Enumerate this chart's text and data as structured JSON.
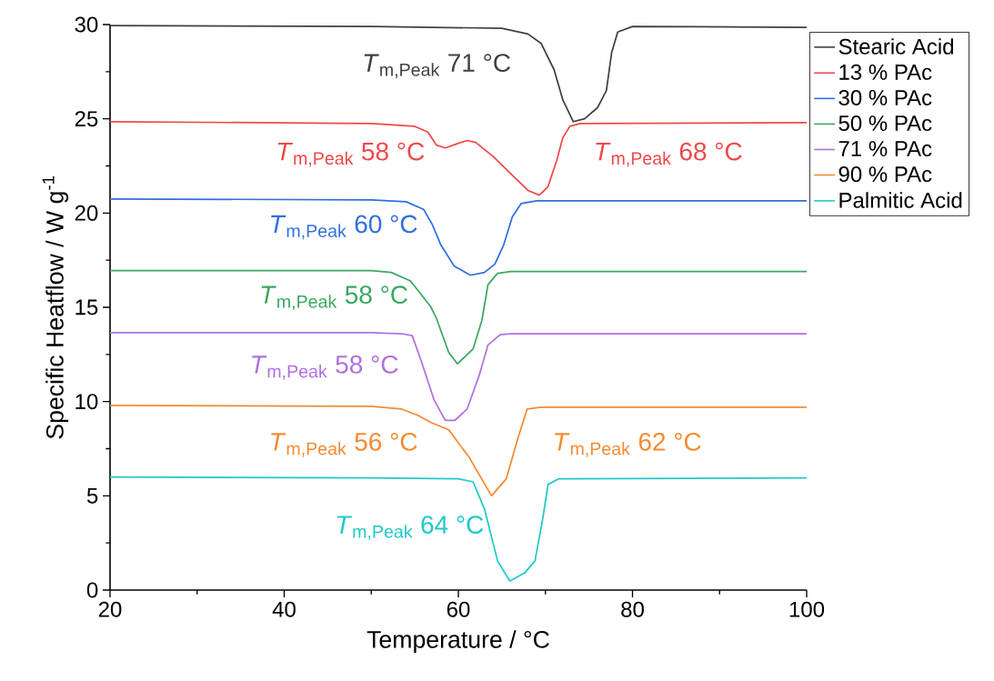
{
  "chart_data": {
    "type": "line",
    "xlabel": "Temperature / °C",
    "ylabel": "Specific Heatflow / W g$^{-1}$",
    "xlim": [
      20,
      100
    ],
    "ylim": [
      0,
      30
    ],
    "xticks": [
      20,
      40,
      60,
      80,
      100
    ],
    "yticks": [
      0,
      5,
      10,
      15,
      20,
      25,
      30
    ],
    "legend": "top right",
    "marker": "none",
    "line_style": "solid",
    "grid": false,
    "series": [
      {
        "name": "Stearic Acid",
        "color": "#404040",
        "x": [
          20,
          50,
          65,
          68,
          69.5,
          71,
          72,
          73.2,
          74.5,
          76,
          77,
          77.6,
          78.3,
          80,
          100
        ],
        "values": [
          29.95,
          29.9,
          29.8,
          29.5,
          29.0,
          27.6,
          26.0,
          24.85,
          25.0,
          25.6,
          26.5,
          28.5,
          29.6,
          29.9,
          29.85
        ]
      },
      {
        "name": "13 % PAc",
        "color": "#f04848",
        "x": [
          20,
          50,
          55,
          56.5,
          57.5,
          58.5,
          60,
          61,
          62,
          64,
          66,
          68,
          69.3,
          70.3,
          71.3,
          72,
          72.8,
          74,
          100
        ],
        "values": [
          24.85,
          24.75,
          24.6,
          24.3,
          23.6,
          23.45,
          23.7,
          23.85,
          23.75,
          23.0,
          22.1,
          21.2,
          20.95,
          21.4,
          22.8,
          24.0,
          24.6,
          24.75,
          24.8
        ]
      },
      {
        "name": "30 % PAc",
        "color": "#2f6fdf",
        "x": [
          20,
          50,
          54,
          56,
          57,
          58,
          59.5,
          61.4,
          63,
          64.2,
          65.2,
          66.2,
          67.2,
          69,
          100
        ],
        "values": [
          20.75,
          20.7,
          20.6,
          20.2,
          19.4,
          18.3,
          17.2,
          16.7,
          16.85,
          17.3,
          18.3,
          19.8,
          20.5,
          20.65,
          20.65
        ]
      },
      {
        "name": "50 % PAc",
        "color": "#3aa860",
        "x": [
          20,
          50,
          52.3,
          54.5,
          55.7,
          56.8,
          57.5,
          58.9,
          59.9,
          61.7,
          62.7,
          63.4,
          64.5,
          66,
          100
        ],
        "values": [
          16.95,
          16.95,
          16.85,
          16.4,
          15.7,
          15.05,
          14.4,
          12.6,
          12.0,
          12.8,
          14.3,
          16.2,
          16.8,
          16.9,
          16.9
        ]
      },
      {
        "name": "71 % PAc",
        "color": "#b070e0",
        "x": [
          20,
          50,
          53.5,
          54.7,
          55.7,
          57.2,
          58.5,
          59.6,
          61,
          62.4,
          63.4,
          64.8,
          66,
          100
        ],
        "values": [
          13.65,
          13.65,
          13.6,
          13.5,
          12.2,
          10.1,
          9.0,
          9.0,
          9.6,
          11.4,
          13.0,
          13.55,
          13.6,
          13.6
        ]
      },
      {
        "name": "90 % PAc",
        "color": "#f58a30",
        "x": [
          20,
          50,
          53.5,
          55.4,
          56.8,
          58.9,
          61.3,
          63.8,
          65.5,
          66.9,
          67.9,
          69.5,
          100
        ],
        "values": [
          9.8,
          9.75,
          9.6,
          9.26,
          8.9,
          8.5,
          7.0,
          5.0,
          5.9,
          8.15,
          9.6,
          9.7,
          9.7
        ]
      },
      {
        "name": "Palmitic Acid",
        "color": "#20c8c8",
        "x": [
          20,
          50,
          60,
          61.7,
          63,
          64.5,
          65.9,
          67.6,
          68.8,
          69.7,
          70.3,
          71.5,
          100
        ],
        "values": [
          6.0,
          5.95,
          5.9,
          5.74,
          4.3,
          1.55,
          0.48,
          0.9,
          1.55,
          3.8,
          5.6,
          5.9,
          5.95
        ]
      }
    ],
    "annotations": [
      "*T*$_{m,Peak}$ 71 °C",
      "*T*$_{m,Peak}$ 58 °C",
      "*T*$_{m,Peak}$ 68 °C",
      "*T*$_{m,Peak}$ 60 °C",
      "*T*$_{m,Peak}$ 58 °C",
      "*T*$_{m,Peak}$ 58 °C",
      "*T*$_{m,Peak}$ 56 °C",
      "*T*$_{m,Peak}$ 62 °C",
      "*T*$_{m,Peak}$ 64 °C"
    ]
  }
}
